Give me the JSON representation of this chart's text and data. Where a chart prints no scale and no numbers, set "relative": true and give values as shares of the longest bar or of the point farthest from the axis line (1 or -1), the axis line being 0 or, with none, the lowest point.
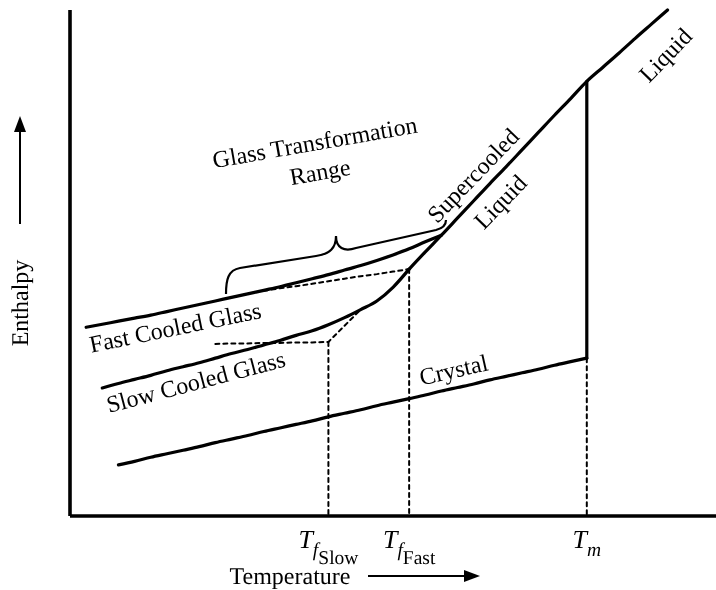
{
  "chart_data": {
    "type": "line",
    "relative": true,
    "xlabel": "Temperature",
    "ylabel": "Enthalpy",
    "annotations": [
      "Glass Transformation Range",
      "Supercooled Liquid",
      "Liquid"
    ],
    "categories": [
      null,
      null,
      null,
      null,
      null,
      null,
      null,
      null,
      null,
      null,
      null,
      null,
      null,
      null,
      null,
      null,
      "T$_{f}$$_{Slow}$",
      null,
      null,
      null,
      null,
      "T$_{f}$$_{Fast}$",
      null,
      null,
      null,
      null,
      null,
      null,
      null,
      null,
      null,
      null,
      "T$_{m}$",
      null,
      null,
      null,
      null,
      null,
      null,
      null,
      null
    ],
    "grid": false,
    "legend": false,
    "marker": "none",
    "series": [
      {
        "name": "Fast Cooled Glass",
        "color": "#000000",
        "values": [
          null,
          0.373,
          0.379,
          0.385,
          0.391,
          0.397,
          0.404,
          0.411,
          0.418,
          0.425,
          0.432,
          0.439,
          0.446,
          0.453,
          0.461,
          0.469,
          0.477,
          0.486,
          0.495,
          0.505,
          0.516,
          0.528,
          0.542,
          0.555,
          null,
          null,
          null,
          null,
          null,
          null,
          null,
          null,
          null,
          null,
          null,
          null,
          null,
          null,
          null,
          null,
          null
        ]
      },
      {
        "name": "Slow Cooled Glass",
        "color": "#000000",
        "values": [
          null,
          null,
          0.253,
          0.262,
          0.27,
          0.278,
          0.287,
          0.295,
          0.303,
          0.312,
          0.321,
          0.329,
          0.338,
          0.347,
          0.357,
          0.366,
          0.378,
          0.392,
          0.408,
          0.425,
          0.452,
          0.488,
          null,
          null,
          null,
          null,
          null,
          null,
          null,
          null,
          null,
          null,
          null,
          null,
          null,
          null,
          null,
          null,
          null,
          null,
          null
        ]
      },
      {
        "name": "Crystal",
        "color": "#000000",
        "values": [
          null,
          null,
          null,
          0.101,
          0.108,
          0.116,
          0.123,
          0.13,
          0.137,
          0.145,
          0.152,
          0.159,
          0.167,
          0.174,
          0.181,
          0.188,
          0.196,
          0.203,
          0.21,
          0.218,
          0.225,
          0.232,
          0.239,
          0.247,
          0.254,
          0.261,
          0.269,
          0.276,
          0.283,
          0.29,
          0.298,
          0.305,
          0.312,
          null,
          null,
          null,
          null,
          null,
          null,
          null,
          null
        ]
      },
      {
        "color": "#000000",
        "values": [
          null,
          null,
          null,
          null,
          null,
          null,
          null,
          null,
          null,
          null,
          null,
          null,
          null,
          null,
          null,
          null,
          null,
          null,
          null,
          null,
          null,
          0.488,
          0.522,
          0.555,
          0.589,
          0.623,
          0.657,
          0.69,
          0.724,
          0.758,
          0.792,
          0.825,
          0.859,
          0.887,
          0.915,
          0.944,
          0.972,
          1,
          null,
          null,
          null
        ]
      },
      {
        "color": "#000000",
        "x": [
          "T$_{m}$",
          "T$_{m}$"
        ],
        "values": [
          0.312,
          0.859
        ]
      },
      {
        "color": "#000000",
        "line_style": "dotted",
        "values": [
          null,
          null,
          null,
          null,
          null,
          null,
          null,
          null,
          null,
          null,
          null,
          null,
          0.445,
          0.45,
          0.454,
          0.459,
          0.464,
          0.469,
          0.474,
          0.478,
          0.483,
          0.488,
          null,
          null,
          null,
          null,
          null,
          null,
          null,
          null,
          null,
          null,
          null,
          null,
          null,
          null,
          null,
          null,
          null,
          null,
          null
        ]
      },
      {
        "color": "#000000",
        "line_style": "dotted",
        "values": [
          null,
          null,
          null,
          null,
          null,
          null,
          null,
          null,
          null,
          0.34,
          0.341,
          0.341,
          0.342,
          0.342,
          0.343,
          0.343,
          0.344,
          0.376,
          0.408,
          null,
          null,
          null,
          null,
          null,
          null,
          null,
          null,
          null,
          null,
          null,
          null,
          null,
          null,
          null,
          null,
          null,
          null,
          null,
          null,
          null,
          null
        ]
      },
      {
        "color": "#000000",
        "line_style": "dotted",
        "x": [
          "T$_{f}$$_{Fast}$",
          "T$_{f}$$_{Fast}$"
        ],
        "values": [
          0.488,
          0
        ]
      },
      {
        "color": "#000000",
        "line_style": "dotted",
        "x": [
          "T$_{f}$$_{Slow}$",
          "T$_{f}$$_{Slow}$"
        ],
        "values": [
          0.344,
          0
        ]
      },
      {
        "color": "#000000",
        "line_style": "dotted",
        "x": [
          "T$_{m}$",
          "T$_{m}$"
        ],
        "values": [
          0.312,
          0
        ]
      }
    ]
  }
}
